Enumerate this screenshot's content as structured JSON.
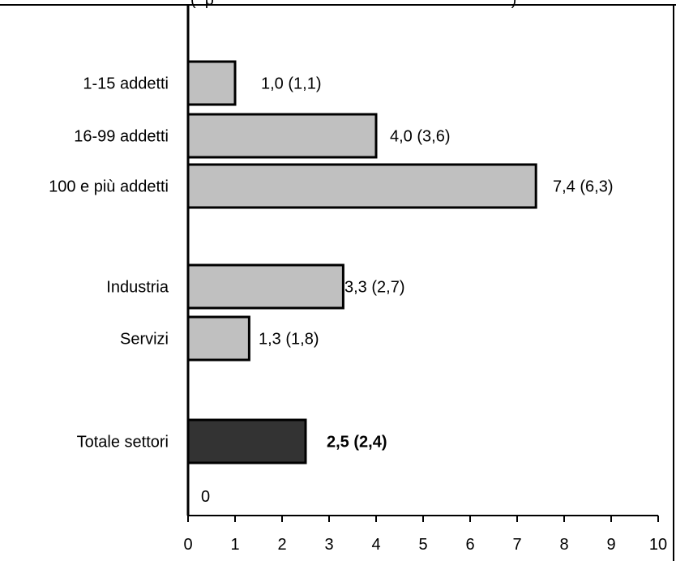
{
  "header_fragment": "(  p                                                                  )",
  "chart_data": {
    "type": "bar",
    "orientation": "horizontal",
    "categories": [
      "1-15 addetti",
      "16-99 addetti",
      "100 e più addetti",
      "Industria",
      "Servizi",
      "Totale settori"
    ],
    "values": [
      1.0,
      4.0,
      7.4,
      3.3,
      1.3,
      2.5
    ],
    "value_labels": [
      "1,0  (1,1)",
      "4,0 (3,6)",
      "7,4 (6,3)",
      "3,3  (2,7)",
      "1,3  (1,8)",
      "2,5 (2,4)"
    ],
    "highlight_index": 5,
    "colors": {
      "bar": "#c0c0c0",
      "highlight_bar": "#333333",
      "stroke": "#000000"
    },
    "xlim": [
      0,
      10
    ],
    "x_ticks": [
      "0",
      "1",
      "2",
      "3",
      "4",
      "5",
      "6",
      "7",
      "8",
      "9",
      "10"
    ],
    "zero_label": "0",
    "grid": false,
    "legend": "none"
  }
}
